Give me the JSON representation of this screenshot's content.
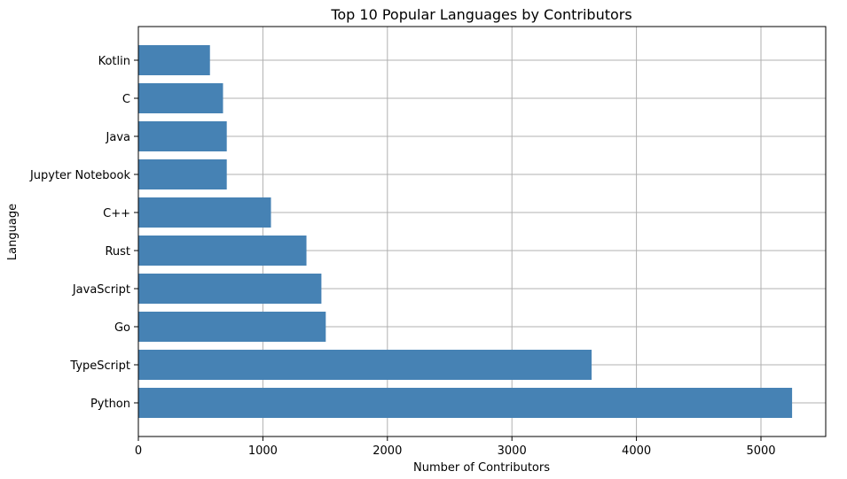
{
  "chart_data": {
    "type": "bar",
    "orientation": "horizontal",
    "title": "Top 10 Popular Languages by Contributors",
    "xlabel": "Number of Contributors",
    "ylabel": "Language",
    "categories": [
      "Python",
      "TypeScript",
      "Go",
      "JavaScript",
      "Rust",
      "C++",
      "Jupyter Notebook",
      "Java",
      "C",
      "Kotlin"
    ],
    "values": [
      5250,
      3640,
      1505,
      1470,
      1350,
      1065,
      710,
      710,
      680,
      575
    ],
    "xlim": [
      0,
      5520
    ],
    "xticks": [
      0,
      1000,
      2000,
      3000,
      4000,
      5000
    ],
    "grid": true,
    "bar_color": "#4682b4"
  }
}
